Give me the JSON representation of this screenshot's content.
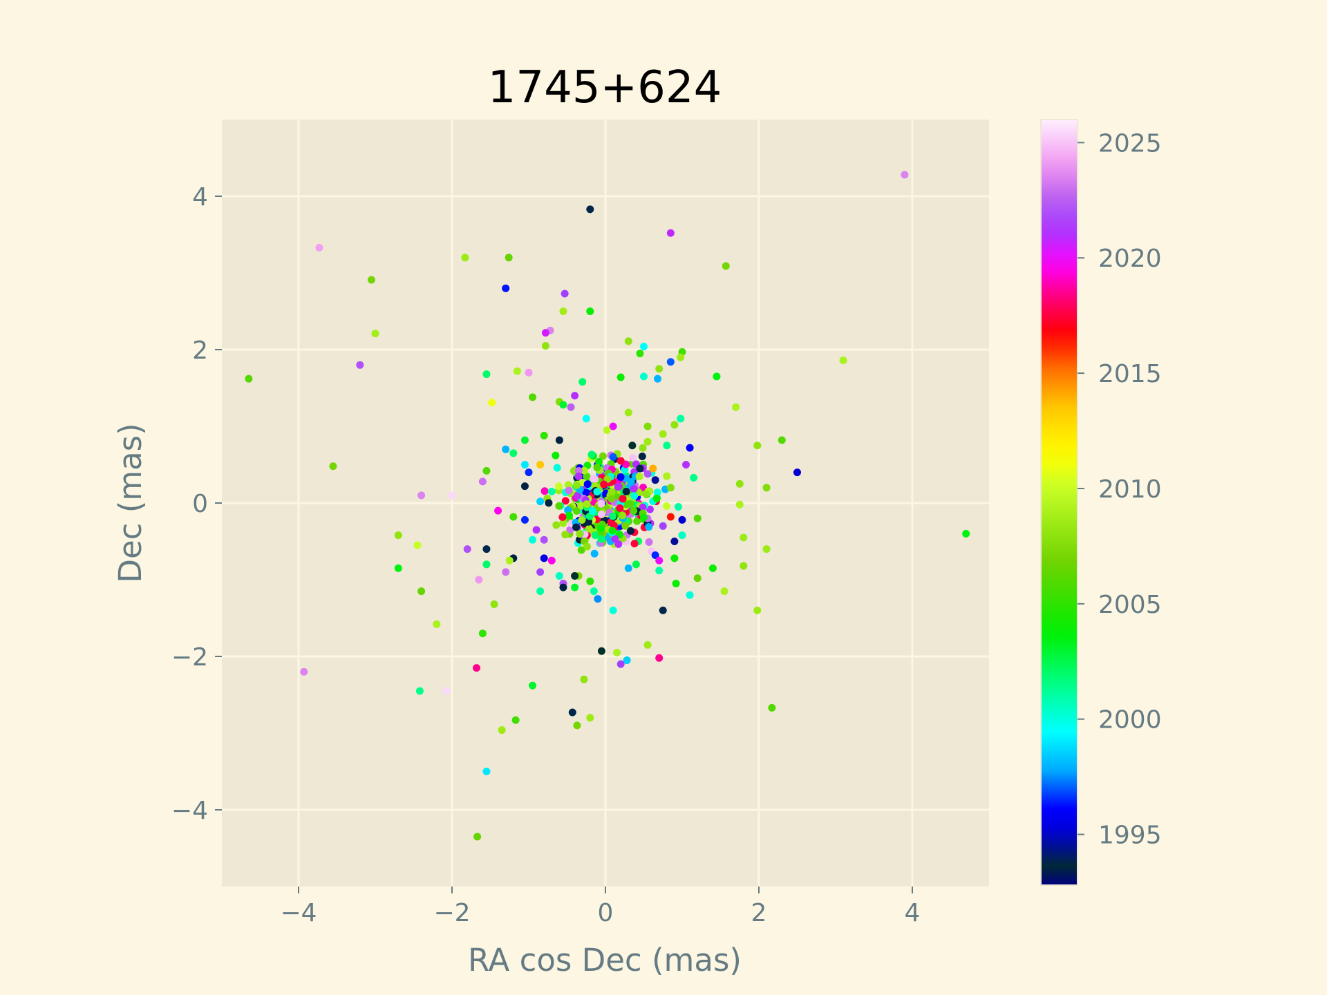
{
  "chart_data": {
    "type": "scatter",
    "title": "1745+624",
    "xlabel": "RA cos Dec (mas)",
    "ylabel": "Dec (mas)",
    "xlim": [
      -5,
      5
    ],
    "ylim": [
      -5,
      5
    ],
    "xticks": [
      -4,
      -2,
      0,
      2,
      4
    ],
    "yticks": [
      -4,
      -2,
      0,
      2,
      4
    ],
    "xtick_labels": [
      "−4",
      "−2",
      "0",
      "2",
      "4"
    ],
    "ytick_labels": [
      "−4",
      "−2",
      "0",
      "2",
      "4"
    ],
    "grid": true,
    "colorbar": {
      "label": "",
      "range": [
        1992.8,
        2026.0
      ],
      "ticks": [
        1995,
        2000,
        2005,
        2010,
        2015,
        2020,
        2025
      ],
      "tick_labels": [
        "1995",
        "2000",
        "2005",
        "2010",
        "2015",
        "2020",
        "2025"
      ],
      "colormap": "gist_ncar"
    },
    "points": [
      {
        "x": 3.9,
        "y": 4.28,
        "t": 2023.5
      },
      {
        "x": -0.2,
        "y": 3.83,
        "t": 1994.0
      },
      {
        "x": 0.85,
        "y": 3.52,
        "t": 2020.8
      },
      {
        "x": -3.73,
        "y": 3.33,
        "t": 2024.2
      },
      {
        "x": -1.83,
        "y": 3.2,
        "t": 2008.5
      },
      {
        "x": -1.26,
        "y": 3.2,
        "t": 2006.5
      },
      {
        "x": 1.57,
        "y": 3.09,
        "t": 2007.0
      },
      {
        "x": -3.05,
        "y": 2.91,
        "t": 2007.0
      },
      {
        "x": -1.3,
        "y": 2.8,
        "t": 1996.3
      },
      {
        "x": -0.53,
        "y": 2.73,
        "t": 2021.5
      },
      {
        "x": -0.2,
        "y": 2.5,
        "t": 2004.0
      },
      {
        "x": -0.55,
        "y": 2.5,
        "t": 2008.7
      },
      {
        "x": -0.72,
        "y": 2.25,
        "t": 2023.5
      },
      {
        "x": -0.78,
        "y": 2.22,
        "t": 2020.5
      },
      {
        "x": -3.0,
        "y": 2.21,
        "t": 2008.7
      },
      {
        "x": 0.3,
        "y": 2.11,
        "t": 2008.0
      },
      {
        "x": -0.78,
        "y": 2.05,
        "t": 2008.0
      },
      {
        "x": 0.5,
        "y": 2.04,
        "t": 1999.5
      },
      {
        "x": 1.0,
        "y": 1.97,
        "t": 2005.5
      },
      {
        "x": 0.45,
        "y": 1.95,
        "t": 2005.0
      },
      {
        "x": 0.98,
        "y": 1.9,
        "t": 2008.5
      },
      {
        "x": 3.1,
        "y": 1.86,
        "t": 2009.0
      },
      {
        "x": 0.85,
        "y": 1.84,
        "t": 1997.0
      },
      {
        "x": -3.2,
        "y": 1.8,
        "t": 2022.0
      },
      {
        "x": 0.7,
        "y": 1.75,
        "t": 2008.0
      },
      {
        "x": -1.15,
        "y": 1.72,
        "t": 2009.0
      },
      {
        "x": -1.0,
        "y": 1.7,
        "t": 2024.0
      },
      {
        "x": -1.55,
        "y": 1.68,
        "t": 2002.0
      },
      {
        "x": 1.45,
        "y": 1.65,
        "t": 2003.5
      },
      {
        "x": 0.5,
        "y": 1.65,
        "t": 2000.3
      },
      {
        "x": 0.2,
        "y": 1.64,
        "t": 2004.0
      },
      {
        "x": -4.65,
        "y": 1.62,
        "t": 2006.0
      },
      {
        "x": 0.68,
        "y": 1.62,
        "t": 1998.0
      },
      {
        "x": -0.3,
        "y": 1.58,
        "t": 2002.0
      },
      {
        "x": -0.95,
        "y": 1.38,
        "t": 2006.0
      },
      {
        "x": -0.4,
        "y": 1.4,
        "t": 2021.0
      },
      {
        "x": -0.6,
        "y": 1.32,
        "t": 2007.5
      },
      {
        "x": -1.48,
        "y": 1.31,
        "t": 2011.0
      },
      {
        "x": -0.55,
        "y": 1.28,
        "t": 2003.0
      },
      {
        "x": -0.45,
        "y": 1.25,
        "t": 2022.5
      },
      {
        "x": 1.7,
        "y": 1.25,
        "t": 2009.0
      },
      {
        "x": 0.3,
        "y": 1.18,
        "t": 2008.5
      },
      {
        "x": -0.25,
        "y": 1.1,
        "t": 1999.5
      },
      {
        "x": 0.98,
        "y": 1.1,
        "t": 2001.0
      },
      {
        "x": 0.55,
        "y": 1.0,
        "t": 2007.5
      },
      {
        "x": 0.9,
        "y": 1.02,
        "t": 2008.0
      },
      {
        "x": 0.1,
        "y": 1.0,
        "t": 2020.0
      },
      {
        "x": 0.02,
        "y": 0.95,
        "t": 2009.5
      },
      {
        "x": 0.75,
        "y": 0.9,
        "t": 2008.5
      },
      {
        "x": 2.3,
        "y": 0.82,
        "t": 2006.0
      },
      {
        "x": -0.6,
        "y": 0.82,
        "t": 1993.5
      },
      {
        "x": -1.05,
        "y": 0.82,
        "t": 2003.0
      },
      {
        "x": -0.8,
        "y": 0.88,
        "t": 2005.0
      },
      {
        "x": 0.55,
        "y": 0.8,
        "t": 2008.5
      },
      {
        "x": 1.98,
        "y": 0.75,
        "t": 2008.0
      },
      {
        "x": 0.8,
        "y": 0.75,
        "t": 2001.5
      },
      {
        "x": 1.1,
        "y": 0.72,
        "t": 1996.0
      },
      {
        "x": -1.3,
        "y": 0.7,
        "t": 1998.0
      },
      {
        "x": -1.2,
        "y": 0.65,
        "t": 2002.0
      },
      {
        "x": -0.65,
        "y": 0.62,
        "t": 2004.0
      },
      {
        "x": 0.35,
        "y": 0.75,
        "t": 1993.8
      },
      {
        "x": 0.1,
        "y": 0.6,
        "t": 1997.0
      },
      {
        "x": 0.2,
        "y": 0.55,
        "t": 2017.5
      },
      {
        "x": 1.05,
        "y": 0.5,
        "t": 2021.0
      },
      {
        "x": -0.85,
        "y": 0.5,
        "t": 2013.5
      },
      {
        "x": -1.05,
        "y": 0.5,
        "t": 1999.0
      },
      {
        "x": 0.62,
        "y": 0.45,
        "t": 2014.0
      },
      {
        "x": -3.55,
        "y": 0.48,
        "t": 2007.0
      },
      {
        "x": 2.5,
        "y": 0.4,
        "t": 1995.0
      },
      {
        "x": -1.55,
        "y": 0.42,
        "t": 2006.0
      },
      {
        "x": -1.0,
        "y": 0.4,
        "t": 1996.5
      },
      {
        "x": 0.45,
        "y": 0.45,
        "t": 1994.0
      },
      {
        "x": 1.15,
        "y": 0.33,
        "t": 2001.5
      },
      {
        "x": 0.55,
        "y": 0.38,
        "t": 2022.0
      },
      {
        "x": 0.8,
        "y": 0.35,
        "t": 2009.0
      },
      {
        "x": -1.6,
        "y": 0.28,
        "t": 2023.0
      },
      {
        "x": 1.75,
        "y": 0.25,
        "t": 2008.0
      },
      {
        "x": -1.05,
        "y": 0.22,
        "t": 1993.5
      },
      {
        "x": 0.85,
        "y": 0.2,
        "t": 2007.5
      },
      {
        "x": 2.1,
        "y": 0.2,
        "t": 2007.5
      },
      {
        "x": -2.4,
        "y": 0.1,
        "t": 2023.5
      },
      {
        "x": -2.0,
        "y": 0.1,
        "t": 2025.5
      },
      {
        "x": 0.65,
        "y": 0.3,
        "t": 1994.5
      },
      {
        "x": -0.7,
        "y": 0.15,
        "t": 2001.0
      },
      {
        "x": 1.75,
        "y": -0.02,
        "t": 2009.0
      },
      {
        "x": -0.85,
        "y": 0.02,
        "t": 1998.5
      },
      {
        "x": 0.95,
        "y": -0.05,
        "t": 2001.0
      },
      {
        "x": -1.4,
        "y": -0.1,
        "t": 2019.5
      },
      {
        "x": 0.85,
        "y": -0.18,
        "t": 2016.5
      },
      {
        "x": -1.2,
        "y": -0.18,
        "t": 2005.5
      },
      {
        "x": 1.2,
        "y": -0.2,
        "t": 2006.0
      },
      {
        "x": -1.05,
        "y": -0.22,
        "t": 1996.5
      },
      {
        "x": 1.0,
        "y": -0.22,
        "t": 1995.0
      },
      {
        "x": 0.75,
        "y": -0.3,
        "t": 2021.5
      },
      {
        "x": -0.9,
        "y": -0.35,
        "t": 2021.0
      },
      {
        "x": 1.0,
        "y": -0.42,
        "t": 2000.5
      },
      {
        "x": 1.8,
        "y": -0.45,
        "t": 2008.5
      },
      {
        "x": 4.7,
        "y": -0.4,
        "t": 2003.5
      },
      {
        "x": -2.7,
        "y": -0.42,
        "t": 2008.0
      },
      {
        "x": -0.8,
        "y": -0.48,
        "t": 2022.0
      },
      {
        "x": -0.95,
        "y": -0.48,
        "t": 2000.0
      },
      {
        "x": 0.9,
        "y": -0.5,
        "t": 1994.5
      },
      {
        "x": -2.45,
        "y": -0.55,
        "t": 2010.0
      },
      {
        "x": 2.1,
        "y": -0.6,
        "t": 2008.5
      },
      {
        "x": -1.55,
        "y": -0.6,
        "t": 1994.0
      },
      {
        "x": -1.8,
        "y": -0.6,
        "t": 2022.0
      },
      {
        "x": 0.65,
        "y": -0.68,
        "t": 1996.5
      },
      {
        "x": -0.8,
        "y": -0.72,
        "t": 1995.5
      },
      {
        "x": -1.2,
        "y": -0.72,
        "t": 1993.5
      },
      {
        "x": -1.25,
        "y": -0.75,
        "t": 2009.0
      },
      {
        "x": -0.7,
        "y": -0.75,
        "t": 2019.5
      },
      {
        "x": 0.9,
        "y": -0.72,
        "t": 2004.0
      },
      {
        "x": 0.7,
        "y": -0.75,
        "t": 2020.0
      },
      {
        "x": -1.55,
        "y": -0.8,
        "t": 2002.0
      },
      {
        "x": 0.4,
        "y": -0.8,
        "t": 2002.5
      },
      {
        "x": 0.3,
        "y": -0.85,
        "t": 1998.0
      },
      {
        "x": 1.8,
        "y": -0.82,
        "t": 2008.0
      },
      {
        "x": 0.7,
        "y": -0.88,
        "t": 2001.0
      },
      {
        "x": -2.7,
        "y": -0.85,
        "t": 2003.5
      },
      {
        "x": 1.4,
        "y": -0.85,
        "t": 2004.0
      },
      {
        "x": -0.85,
        "y": -0.9,
        "t": 2021.5
      },
      {
        "x": -1.3,
        "y": -0.9,
        "t": 2023.0
      },
      {
        "x": -0.35,
        "y": -0.95,
        "t": 2007.5
      },
      {
        "x": -0.6,
        "y": -0.95,
        "t": 2000.5
      },
      {
        "x": -0.4,
        "y": -0.95,
        "t": 1993.8
      },
      {
        "x": 1.2,
        "y": -0.98,
        "t": 2006.5
      },
      {
        "x": -1.65,
        "y": -1.0,
        "t": 2024.0
      },
      {
        "x": -0.2,
        "y": -1.02,
        "t": 2005.0
      },
      {
        "x": -0.55,
        "y": -1.05,
        "t": 2022.0
      },
      {
        "x": 0.92,
        "y": -1.05,
        "t": 2004.0
      },
      {
        "x": -0.4,
        "y": -1.1,
        "t": 2003.0
      },
      {
        "x": -0.55,
        "y": -1.1,
        "t": 1993.5
      },
      {
        "x": -0.15,
        "y": -1.15,
        "t": 2001.0
      },
      {
        "x": -0.85,
        "y": -1.15,
        "t": 2001.0
      },
      {
        "x": -2.4,
        "y": -1.15,
        "t": 2006.5
      },
      {
        "x": 1.55,
        "y": -1.15,
        "t": 2009.0
      },
      {
        "x": 1.1,
        "y": -1.2,
        "t": 2000.0
      },
      {
        "x": -0.1,
        "y": -1.25,
        "t": 1997.5
      },
      {
        "x": -1.45,
        "y": -1.32,
        "t": 2008.0
      },
      {
        "x": 0.75,
        "y": -1.4,
        "t": 1994.0
      },
      {
        "x": 1.98,
        "y": -1.4,
        "t": 2008.5
      },
      {
        "x": 0.1,
        "y": -1.4,
        "t": 2000.0
      },
      {
        "x": -2.2,
        "y": -1.58,
        "t": 2009.0
      },
      {
        "x": -1.6,
        "y": -1.7,
        "t": 2005.0
      },
      {
        "x": 0.55,
        "y": -1.85,
        "t": 2008.5
      },
      {
        "x": -0.05,
        "y": -1.93,
        "t": 1993.8
      },
      {
        "x": 0.15,
        "y": -1.95,
        "t": 2009.0
      },
      {
        "x": 0.7,
        "y": -2.02,
        "t": 2018.5
      },
      {
        "x": 0.28,
        "y": -2.05,
        "t": 1998.5
      },
      {
        "x": 0.2,
        "y": -2.1,
        "t": 2021.5
      },
      {
        "x": -1.68,
        "y": -2.15,
        "t": 2018.5
      },
      {
        "x": -3.93,
        "y": -2.2,
        "t": 2023.5
      },
      {
        "x": -0.28,
        "y": -2.3,
        "t": 2008.0
      },
      {
        "x": -0.95,
        "y": -2.38,
        "t": 2003.0
      },
      {
        "x": -2.42,
        "y": -2.45,
        "t": 2001.5
      },
      {
        "x": -2.07,
        "y": -2.45,
        "t": 2025.5
      },
      {
        "x": 2.17,
        "y": -2.67,
        "t": 2006.0
      },
      {
        "x": -0.43,
        "y": -2.73,
        "t": 1994.0
      },
      {
        "x": -0.2,
        "y": -2.8,
        "t": 2008.5
      },
      {
        "x": -1.17,
        "y": -2.83,
        "t": 2005.5
      },
      {
        "x": -0.37,
        "y": -2.9,
        "t": 2007.0
      },
      {
        "x": -1.35,
        "y": -2.96,
        "t": 2008.5
      },
      {
        "x": -1.55,
        "y": -3.5,
        "t": 1999.0
      },
      {
        "x": -1.67,
        "y": -4.35,
        "t": 2006.5
      }
    ],
    "cluster": {
      "count": 560,
      "x_range": [
        -1.0,
        1.0
      ],
      "y_range": [
        -1.0,
        1.0
      ]
    }
  }
}
